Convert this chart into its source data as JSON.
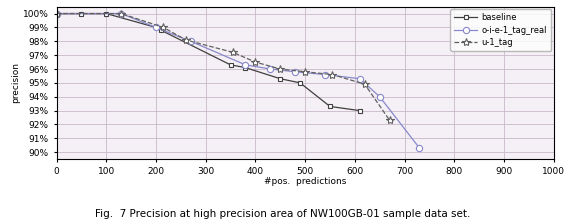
{
  "baseline_x": [
    0,
    50,
    100,
    200,
    210,
    350,
    380,
    450,
    490,
    550,
    610
  ],
  "baseline_y": [
    1.0,
    1.0,
    1.0,
    0.99,
    0.988,
    0.963,
    0.961,
    0.953,
    0.95,
    0.933,
    0.93
  ],
  "oie1_x": [
    0,
    130,
    200,
    270,
    380,
    430,
    480,
    540,
    610,
    650,
    730
  ],
  "oie1_y": [
    1.0,
    1.0,
    0.99,
    0.98,
    0.963,
    0.96,
    0.958,
    0.956,
    0.953,
    0.94,
    0.903
  ],
  "u1_x": [
    0,
    130,
    215,
    260,
    355,
    400,
    450,
    500,
    555,
    620,
    670
  ],
  "u1_y": [
    1.0,
    1.0,
    0.99,
    0.981,
    0.972,
    0.965,
    0.96,
    0.958,
    0.956,
    0.949,
    0.923
  ],
  "xlabel": "#pos.  predictions",
  "ylabel": "precision",
  "caption": "Fig.  7 Precision at high precision area of NW100GB-01 sample data set.",
  "xlim": [
    0,
    1000
  ],
  "ylim": [
    0.895,
    1.005
  ],
  "yticks": [
    0.9,
    0.91,
    0.92,
    0.93,
    0.94,
    0.95,
    0.96,
    0.97,
    0.98,
    0.99,
    1.0
  ],
  "xticks": [
    0,
    100,
    200,
    300,
    400,
    500,
    600,
    700,
    800,
    900,
    1000
  ],
  "baseline_color": "#404040",
  "oie1_color": "#8888cc",
  "u1_color": "#606060",
  "legend_labels": [
    "baseline",
    "o-i-e-1_tag_real",
    "u-1_tag"
  ],
  "bg_color": "#ffffff",
  "plot_bg": "#f5f0f5",
  "grid_color": "#c8b8c8"
}
